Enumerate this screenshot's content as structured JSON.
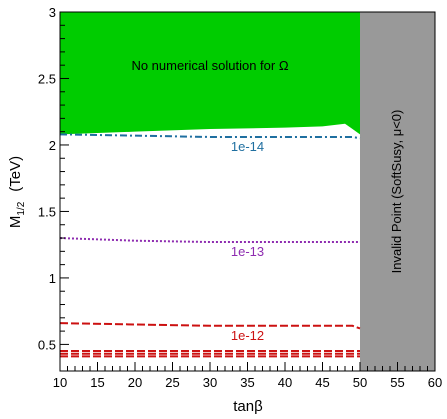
{
  "chart_data": {
    "type": "contour",
    "x_label": "tanβ",
    "y_label": {
      "symbol": "M",
      "subscript": "1/2",
      "unit": "(TeV)"
    },
    "xlim": [
      10,
      60
    ],
    "ylim": [
      0.3,
      3
    ],
    "xticks": [
      10,
      15,
      20,
      25,
      30,
      35,
      40,
      45,
      50,
      55,
      60
    ],
    "yticks": [
      0.5,
      1,
      1.5,
      2,
      2.5,
      3
    ],
    "regions": [
      {
        "name": "No numerical solution for Ω",
        "color": "#00cc00",
        "x": [
          10,
          20,
          30,
          40,
          45,
          48,
          49,
          50
        ],
        "values": [
          2.08,
          2.1,
          2.12,
          2.13,
          2.14,
          2.16,
          2.12,
          2.08
        ]
      }
    ],
    "bands": [
      {
        "name": "Invalid Point (SoftSusy, μ<0)",
        "color": "#999999",
        "xrange": [
          50,
          60
        ]
      }
    ],
    "series": [
      {
        "name": "1e-14",
        "color": "#1f6fa0",
        "style": "dashdot",
        "x": [
          10,
          20,
          30,
          40,
          49,
          50
        ],
        "values": [
          2.08,
          2.07,
          2.06,
          2.06,
          2.06,
          2.05
        ]
      },
      {
        "name": "1e-13",
        "color": "#8e2cb0",
        "style": "dotted",
        "x": [
          10,
          20,
          30,
          40,
          49,
          50
        ],
        "values": [
          1.3,
          1.28,
          1.27,
          1.27,
          1.27,
          1.27
        ]
      },
      {
        "name": "1e-12",
        "color": "#cc1111",
        "style": "dashed",
        "x": [
          10,
          20,
          30,
          40,
          49,
          50
        ],
        "values": [
          0.66,
          0.65,
          0.64,
          0.64,
          0.64,
          0.62
        ]
      },
      {
        "color": "#cc1111",
        "style": "dashed",
        "x": [
          10,
          30,
          50
        ],
        "values": [
          0.45,
          0.45,
          0.45
        ]
      },
      {
        "color": "#cc1111",
        "style": "dashed",
        "x": [
          10,
          30,
          50
        ],
        "values": [
          0.43,
          0.43,
          0.43
        ]
      },
      {
        "color": "#cc1111",
        "style": "dashed",
        "x": [
          10,
          30,
          50
        ],
        "values": [
          0.41,
          0.41,
          0.41
        ]
      }
    ]
  }
}
